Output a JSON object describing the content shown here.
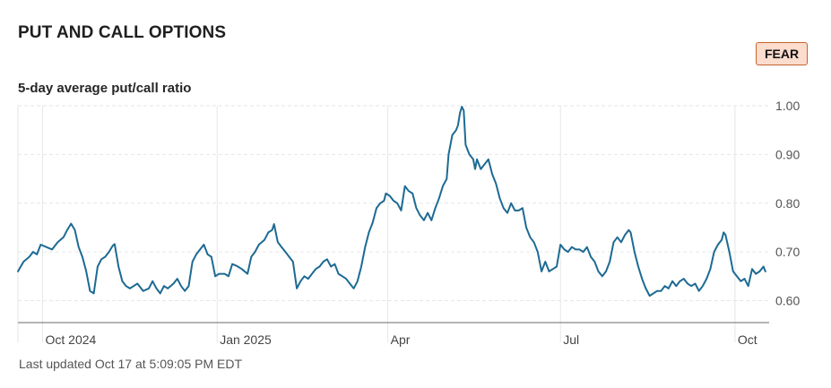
{
  "header": {
    "title": "PUT AND CALL OPTIONS",
    "badge_label": "FEAR"
  },
  "colors": {
    "line": "#1d6a93",
    "badge_bg": "#fbdccd",
    "badge_border": "#c7652e",
    "grid": "#e6e6e6",
    "axis": "#888888"
  },
  "chart_data": {
    "type": "line",
    "title": "5-day average put/call ratio",
    "xlabel": "",
    "ylabel": "",
    "ylim": [
      0.555,
      1.0
    ],
    "yticks": [
      1.0,
      0.9,
      0.8,
      0.7,
      0.6
    ],
    "ytick_labels": [
      "1.00",
      "0.90",
      "0.80",
      "0.70",
      "0.60"
    ],
    "xticks": [
      {
        "label": "Oct 2024",
        "date": "2024-10-01"
      },
      {
        "label": "Jan 2025",
        "date": "2025-01-01"
      },
      {
        "label": "Apr",
        "date": "2025-04-01"
      },
      {
        "label": "Jul",
        "date": "2025-07-01"
      },
      {
        "label": "Oct",
        "date": "2025-10-01"
      }
    ],
    "grid": true,
    "legend": "none",
    "series": [
      {
        "points": [
          [
            "2024-09-18",
            0.66
          ],
          [
            "2024-09-21",
            0.68
          ],
          [
            "2024-09-24",
            0.69
          ],
          [
            "2024-09-26",
            0.7
          ],
          [
            "2024-09-28",
            0.695
          ],
          [
            "2024-09-30",
            0.715
          ],
          [
            "2024-10-03",
            0.71
          ],
          [
            "2024-10-06",
            0.705
          ],
          [
            "2024-10-09",
            0.72
          ],
          [
            "2024-10-12",
            0.73
          ],
          [
            "2024-10-14",
            0.745
          ],
          [
            "2024-10-16",
            0.758
          ],
          [
            "2024-10-18",
            0.745
          ],
          [
            "2024-10-20",
            0.71
          ],
          [
            "2024-10-22",
            0.69
          ],
          [
            "2024-10-24",
            0.66
          ],
          [
            "2024-10-26",
            0.62
          ],
          [
            "2024-10-28",
            0.615
          ],
          [
            "2024-10-30",
            0.67
          ],
          [
            "2024-11-01",
            0.685
          ],
          [
            "2024-11-03",
            0.69
          ],
          [
            "2024-11-05",
            0.7
          ],
          [
            "2024-11-07",
            0.713
          ],
          [
            "2024-11-08",
            0.716
          ],
          [
            "2024-11-10",
            0.67
          ],
          [
            "2024-11-12",
            0.64
          ],
          [
            "2024-11-14",
            0.63
          ],
          [
            "2024-11-16",
            0.625
          ],
          [
            "2024-11-18",
            0.63
          ],
          [
            "2024-11-20",
            0.635
          ],
          [
            "2024-11-23",
            0.62
          ],
          [
            "2024-11-26",
            0.625
          ],
          [
            "2024-11-28",
            0.64
          ],
          [
            "2024-11-30",
            0.625
          ],
          [
            "2024-12-02",
            0.615
          ],
          [
            "2024-12-04",
            0.63
          ],
          [
            "2024-12-06",
            0.625
          ],
          [
            "2024-12-09",
            0.635
          ],
          [
            "2024-12-11",
            0.645
          ],
          [
            "2024-12-13",
            0.63
          ],
          [
            "2024-12-15",
            0.62
          ],
          [
            "2024-12-17",
            0.63
          ],
          [
            "2024-12-19",
            0.68
          ],
          [
            "2024-12-21",
            0.695
          ],
          [
            "2024-12-23",
            0.705
          ],
          [
            "2024-12-25",
            0.715
          ],
          [
            "2024-12-27",
            0.695
          ],
          [
            "2024-12-29",
            0.69
          ],
          [
            "2024-12-31",
            0.65
          ],
          [
            "2025-01-02",
            0.655
          ],
          [
            "2025-01-05",
            0.655
          ],
          [
            "2025-01-07",
            0.65
          ],
          [
            "2025-01-09",
            0.675
          ],
          [
            "2025-01-11",
            0.672
          ],
          [
            "2025-01-14",
            0.665
          ],
          [
            "2025-01-17",
            0.655
          ],
          [
            "2025-01-19",
            0.69
          ],
          [
            "2025-01-21",
            0.7
          ],
          [
            "2025-01-23",
            0.715
          ],
          [
            "2025-01-26",
            0.725
          ],
          [
            "2025-01-28",
            0.74
          ],
          [
            "2025-01-30",
            0.745
          ],
          [
            "2025-01-31",
            0.757
          ],
          [
            "2025-02-02",
            0.72
          ],
          [
            "2025-02-04",
            0.71
          ],
          [
            "2025-02-06",
            0.7
          ],
          [
            "2025-02-08",
            0.69
          ],
          [
            "2025-02-10",
            0.68
          ],
          [
            "2025-02-12",
            0.625
          ],
          [
            "2025-02-14",
            0.64
          ],
          [
            "2025-02-16",
            0.65
          ],
          [
            "2025-02-18",
            0.645
          ],
          [
            "2025-02-20",
            0.655
          ],
          [
            "2025-02-22",
            0.665
          ],
          [
            "2025-02-24",
            0.67
          ],
          [
            "2025-02-26",
            0.68
          ],
          [
            "2025-02-28",
            0.685
          ],
          [
            "2025-03-02",
            0.67
          ],
          [
            "2025-03-04",
            0.675
          ],
          [
            "2025-03-06",
            0.655
          ],
          [
            "2025-03-08",
            0.65
          ],
          [
            "2025-03-10",
            0.645
          ],
          [
            "2025-03-12",
            0.635
          ],
          [
            "2025-03-14",
            0.625
          ],
          [
            "2025-03-16",
            0.64
          ],
          [
            "2025-03-18",
            0.67
          ],
          [
            "2025-03-20",
            0.71
          ],
          [
            "2025-03-22",
            0.74
          ],
          [
            "2025-03-24",
            0.76
          ],
          [
            "2025-03-26",
            0.79
          ],
          [
            "2025-03-28",
            0.8
          ],
          [
            "2025-03-30",
            0.805
          ],
          [
            "2025-03-31",
            0.82
          ],
          [
            "2025-04-02",
            0.815
          ],
          [
            "2025-04-04",
            0.805
          ],
          [
            "2025-04-06",
            0.8
          ],
          [
            "2025-04-08",
            0.785
          ],
          [
            "2025-04-10",
            0.835
          ],
          [
            "2025-04-12",
            0.825
          ],
          [
            "2025-04-14",
            0.82
          ],
          [
            "2025-04-16",
            0.79
          ],
          [
            "2025-04-18",
            0.775
          ],
          [
            "2025-04-20",
            0.765
          ],
          [
            "2025-04-22",
            0.78
          ],
          [
            "2025-04-24",
            0.765
          ],
          [
            "2025-04-26",
            0.79
          ],
          [
            "2025-04-28",
            0.81
          ],
          [
            "2025-04-30",
            0.835
          ],
          [
            "2025-05-02",
            0.85
          ],
          [
            "2025-05-03",
            0.9
          ],
          [
            "2025-05-05",
            0.94
          ],
          [
            "2025-05-07",
            0.95
          ],
          [
            "2025-05-08",
            0.96
          ],
          [
            "2025-05-09",
            0.985
          ],
          [
            "2025-05-10",
            0.998
          ],
          [
            "2025-05-11",
            0.99
          ],
          [
            "2025-05-12",
            0.92
          ],
          [
            "2025-05-14",
            0.9
          ],
          [
            "2025-05-16",
            0.89
          ],
          [
            "2025-05-17",
            0.87
          ],
          [
            "2025-05-18",
            0.89
          ],
          [
            "2025-05-20",
            0.87
          ],
          [
            "2025-05-22",
            0.88
          ],
          [
            "2025-05-24",
            0.89
          ],
          [
            "2025-05-26",
            0.86
          ],
          [
            "2025-05-28",
            0.84
          ],
          [
            "2025-05-30",
            0.81
          ],
          [
            "2025-06-01",
            0.79
          ],
          [
            "2025-06-03",
            0.78
          ],
          [
            "2025-06-05",
            0.8
          ],
          [
            "2025-06-07",
            0.785
          ],
          [
            "2025-06-09",
            0.785
          ],
          [
            "2025-06-11",
            0.79
          ],
          [
            "2025-06-13",
            0.75
          ],
          [
            "2025-06-15",
            0.73
          ],
          [
            "2025-06-17",
            0.72
          ],
          [
            "2025-06-19",
            0.7
          ],
          [
            "2025-06-21",
            0.66
          ],
          [
            "2025-06-23",
            0.68
          ],
          [
            "2025-06-25",
            0.66
          ],
          [
            "2025-06-27",
            0.665
          ],
          [
            "2025-06-29",
            0.67
          ],
          [
            "2025-07-01",
            0.715
          ],
          [
            "2025-07-03",
            0.705
          ],
          [
            "2025-07-05",
            0.7
          ],
          [
            "2025-07-07",
            0.71
          ],
          [
            "2025-07-09",
            0.705
          ],
          [
            "2025-07-11",
            0.705
          ],
          [
            "2025-07-13",
            0.7
          ],
          [
            "2025-07-15",
            0.71
          ],
          [
            "2025-07-17",
            0.69
          ],
          [
            "2025-07-19",
            0.68
          ],
          [
            "2025-07-21",
            0.66
          ],
          [
            "2025-07-23",
            0.65
          ],
          [
            "2025-07-25",
            0.66
          ],
          [
            "2025-07-27",
            0.68
          ],
          [
            "2025-07-29",
            0.72
          ],
          [
            "2025-07-31",
            0.73
          ],
          [
            "2025-08-02",
            0.72
          ],
          [
            "2025-08-04",
            0.735
          ],
          [
            "2025-08-06",
            0.745
          ],
          [
            "2025-08-07",
            0.74
          ],
          [
            "2025-08-09",
            0.7
          ],
          [
            "2025-08-11",
            0.67
          ],
          [
            "2025-08-13",
            0.645
          ],
          [
            "2025-08-15",
            0.625
          ],
          [
            "2025-08-17",
            0.61
          ],
          [
            "2025-08-19",
            0.615
          ],
          [
            "2025-08-21",
            0.62
          ],
          [
            "2025-08-23",
            0.62
          ],
          [
            "2025-08-25",
            0.63
          ],
          [
            "2025-08-27",
            0.625
          ],
          [
            "2025-08-29",
            0.64
          ],
          [
            "2025-08-31",
            0.63
          ],
          [
            "2025-09-02",
            0.64
          ],
          [
            "2025-09-04",
            0.645
          ],
          [
            "2025-09-06",
            0.635
          ],
          [
            "2025-09-08",
            0.63
          ],
          [
            "2025-09-10",
            0.635
          ],
          [
            "2025-09-12",
            0.62
          ],
          [
            "2025-09-14",
            0.63
          ],
          [
            "2025-09-16",
            0.645
          ],
          [
            "2025-09-18",
            0.665
          ],
          [
            "2025-09-20",
            0.7
          ],
          [
            "2025-09-22",
            0.715
          ],
          [
            "2025-09-24",
            0.725
          ],
          [
            "2025-09-25",
            0.74
          ],
          [
            "2025-09-26",
            0.735
          ],
          [
            "2025-09-28",
            0.7
          ],
          [
            "2025-09-30",
            0.66
          ],
          [
            "2025-10-02",
            0.65
          ],
          [
            "2025-10-04",
            0.64
          ],
          [
            "2025-10-06",
            0.645
          ],
          [
            "2025-10-08",
            0.63
          ],
          [
            "2025-10-10",
            0.665
          ],
          [
            "2025-10-12",
            0.655
          ],
          [
            "2025-10-14",
            0.66
          ],
          [
            "2025-10-16",
            0.67
          ],
          [
            "2025-10-17",
            0.66
          ]
        ]
      }
    ]
  },
  "footer": {
    "last_updated": "Last updated Oct 17 at 5:09:05 PM EDT"
  }
}
